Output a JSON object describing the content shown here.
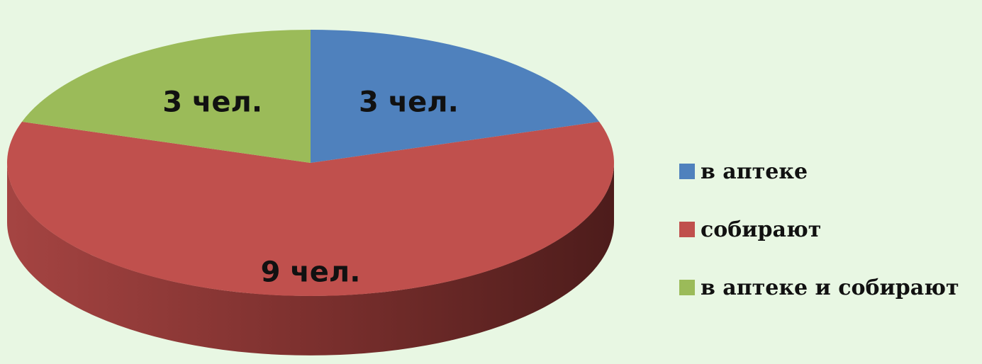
{
  "chart_data": {
    "type": "pie",
    "categories": [
      "в аптеке",
      "собирают",
      "в аптеке и собирают"
    ],
    "values": [
      3,
      9,
      3
    ],
    "data_labels": [
      "3 чел.",
      "9 чел.",
      "3 чел."
    ],
    "colors": [
      "#4f81bd",
      "#c0504d",
      "#9bbb59"
    ],
    "legend_position": "right",
    "style": "3d"
  },
  "legend": {
    "items": [
      {
        "label": "в аптеке",
        "color": "#4f81bd"
      },
      {
        "label": "собирают",
        "color": "#c0504d"
      },
      {
        "label": "в аптеке и собирают",
        "color": "#9bbb59"
      }
    ]
  },
  "background_color": "#e8f7e3"
}
